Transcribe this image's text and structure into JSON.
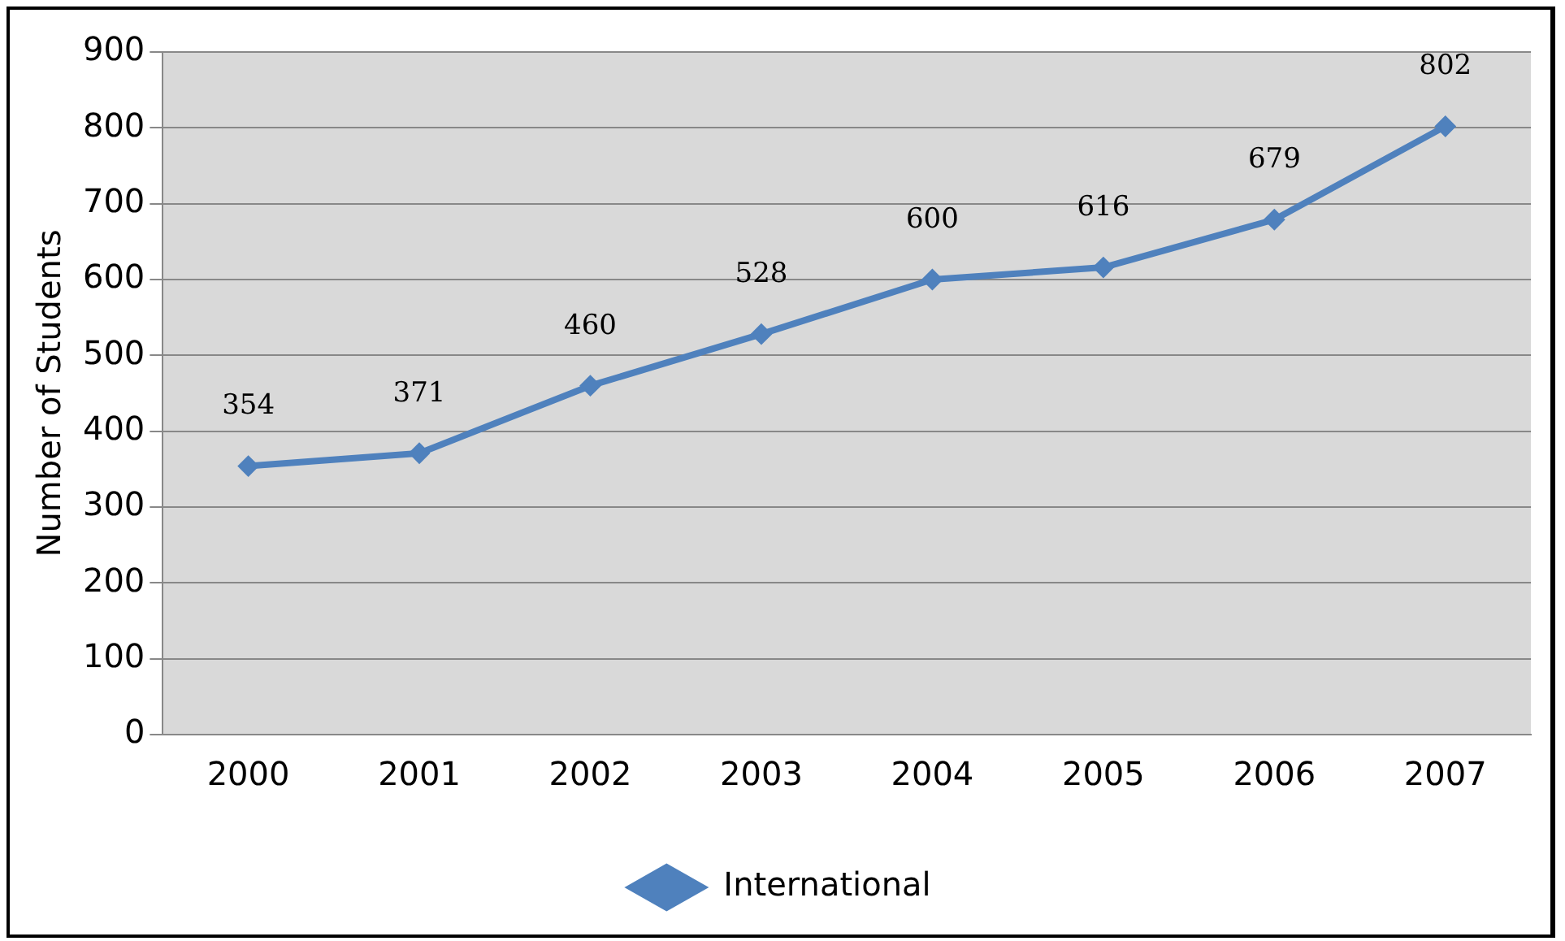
{
  "chart_data": {
    "type": "line",
    "ylabel": "Number of Students",
    "categories": [
      "2000",
      "2001",
      "2002",
      "2003",
      "2004",
      "2005",
      "2006",
      "2007"
    ],
    "series": [
      {
        "name": "International",
        "color": "#4f81bd",
        "values": [
          354,
          371,
          460,
          528,
          600,
          616,
          679,
          802
        ]
      }
    ],
    "ylim": [
      0,
      900
    ],
    "yticks": [
      0,
      100,
      200,
      300,
      400,
      500,
      600,
      700,
      800,
      900
    ],
    "grid": "y",
    "legend": "bottom",
    "marker": "diamond",
    "data_labels": true
  }
}
